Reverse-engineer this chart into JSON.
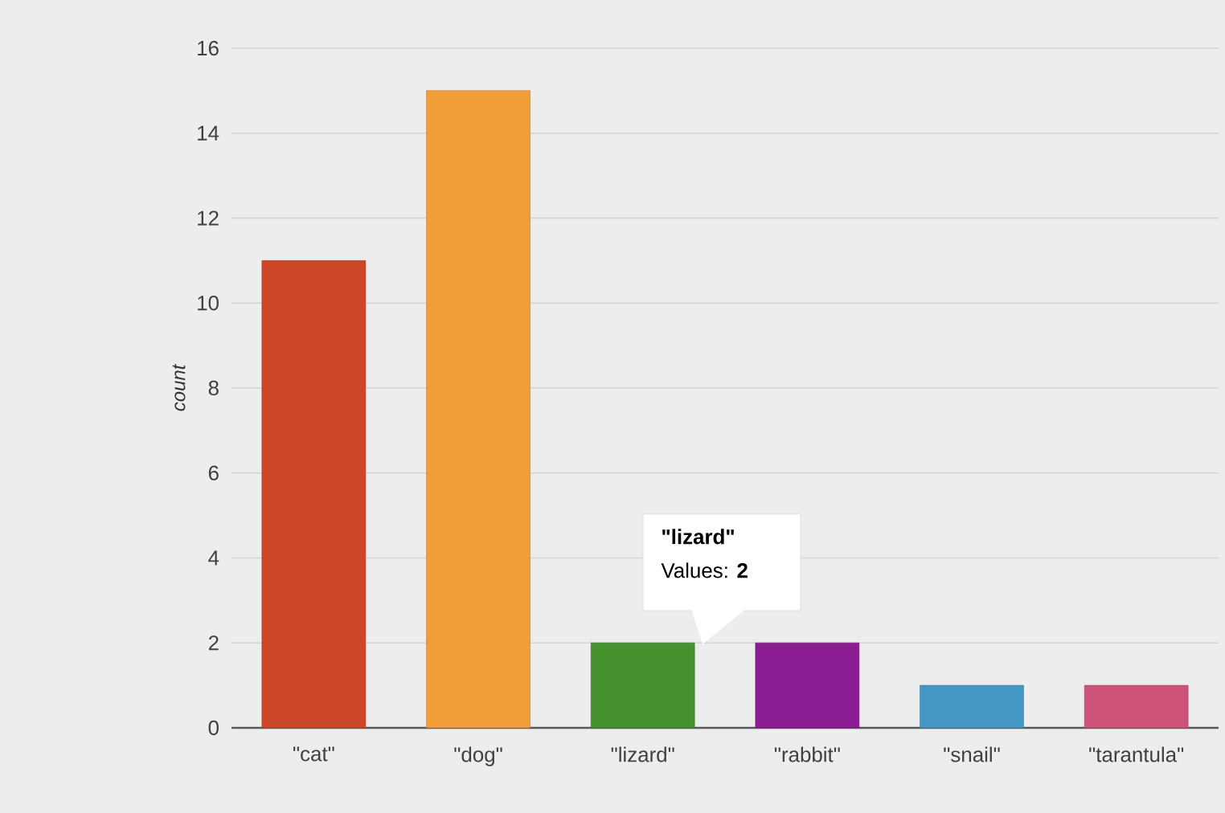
{
  "chart_data": {
    "type": "bar",
    "ylabel": "count",
    "categories": [
      "\"cat\"",
      "\"dog\"",
      "\"lizard\"",
      "\"rabbit\"",
      "\"snail\"",
      "\"tarantula\""
    ],
    "values": [
      11,
      15,
      2,
      2,
      1,
      1
    ],
    "colors": [
      "#cc4628",
      "#f09e38",
      "#45922f",
      "#8c1c91",
      "#4598c5",
      "#cd5378"
    ],
    "ylim": [
      0,
      16
    ],
    "yticks": [
      0,
      2,
      4,
      6,
      8,
      10,
      12,
      14,
      16
    ],
    "grid": "y",
    "annotations": [
      "\"lizard\"",
      "Values: **2**"
    ]
  }
}
